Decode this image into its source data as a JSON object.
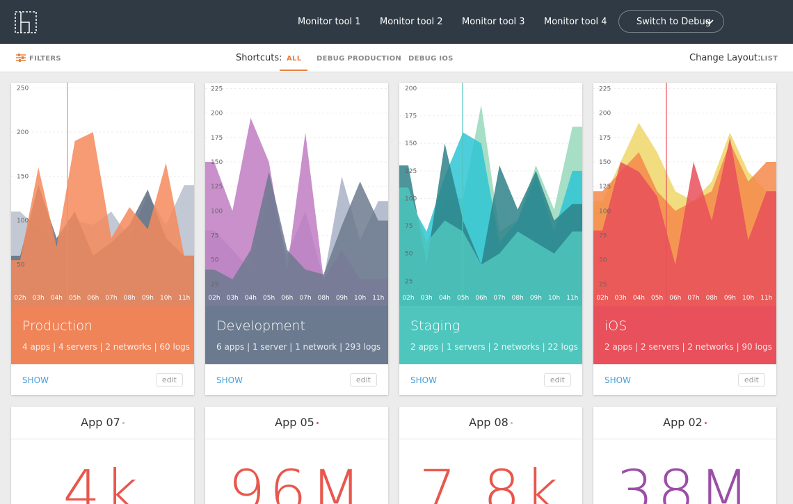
{
  "nav": {
    "items": [
      "Monitor tool 1",
      "Monitor tool 2",
      "Monitor tool 3",
      "Monitor tool 4"
    ],
    "button": "Switch to Debug"
  },
  "toolbar": {
    "filters": "FILTERS",
    "shortcuts_label": "Shortcuts:",
    "shortcuts": [
      "ALL",
      "DEBUG PRODUCTION",
      "DEBUG IOS"
    ],
    "layout_label": "Change Layout:",
    "layout": "LIST"
  },
  "cards": [
    {
      "title": "Production",
      "stats": "4 apps | 4 servers | 2 networks | 60 logs",
      "action": "SHOW",
      "edit": "edit",
      "color": "#ef8459",
      "chart": {
        "type": "area",
        "categories": [
          "02h",
          "03h",
          "04h",
          "05h",
          "06h",
          "07h",
          "08h",
          "09h",
          "10h",
          "11h"
        ],
        "ylim": [
          0,
          256
        ],
        "yticks": [
          50,
          100,
          150,
          200,
          250
        ],
        "series": [
          {
            "color": "#b7c0cc",
            "values": [
              110,
              90,
              75,
              100,
              95,
              110,
              80,
              130,
              95,
              140
            ]
          },
          {
            "color": "#5f6f80",
            "values": [
              60,
              140,
              80,
              110,
              60,
              75,
              95,
              135,
              80,
              60
            ]
          },
          {
            "color": "#f58a5c",
            "values": [
              55,
              160,
              70,
              190,
              200,
              80,
              115,
              90,
              165,
              60
            ]
          }
        ]
      }
    },
    {
      "title": "Development",
      "stats": "6 apps | 1 server | 1 network | 293 logs",
      "action": "SHOW",
      "edit": "edit",
      "color": "#6b7a8f",
      "chart": {
        "type": "area",
        "categories": [
          "02h",
          "03h",
          "04h",
          "05h",
          "06h",
          "07h",
          "08h",
          "09h",
          "10h",
          "11h"
        ],
        "ylim": [
          0,
          231
        ],
        "yticks": [
          25,
          50,
          75,
          100,
          125,
          150,
          175,
          200,
          225
        ],
        "series": [
          {
            "color": "#a9b2c7",
            "values": [
              80,
              60,
              40,
              120,
              55,
              100,
              30,
              135,
              70,
              110
            ]
          },
          {
            "color": "#c07cc3",
            "values": [
              150,
              100,
              195,
              150,
              40,
              180,
              30,
              60,
              30,
              30
            ]
          },
          {
            "color": "#6d7a8e",
            "values": [
              40,
              30,
              60,
              140,
              60,
              40,
              35,
              85,
              130,
              90
            ]
          }
        ]
      }
    },
    {
      "title": "Staging",
      "stats": "2 apps | 1 servers | 2 networks | 22 logs",
      "action": "SHOW",
      "edit": "edit",
      "color": "#4fc6bd",
      "chart": {
        "type": "area",
        "categories": [
          "02h",
          "03h",
          "04h",
          "05h",
          "06h",
          "07h",
          "08h",
          "09h",
          "10h",
          "11h"
        ],
        "ylim": [
          0,
          205
        ],
        "yticks": [
          25,
          50,
          75,
          100,
          125,
          150,
          175,
          200
        ],
        "series": [
          {
            "color": "#97d9bb",
            "values": [
              100,
              60,
              100,
              100,
              185,
              70,
              80,
              130,
              90,
              165
            ]
          },
          {
            "color": "#2fc6d4",
            "values": [
              100,
              70,
              120,
              160,
              150,
              60,
              80,
              120,
              70,
              125
            ]
          },
          {
            "color": "#2e8388",
            "values": [
              130,
              40,
              150,
              80,
              40,
              130,
              90,
              125,
              80,
              95
            ]
          },
          {
            "color": "#4fc6bd",
            "values": [
              110,
              60,
              80,
              70,
              40,
              50,
              70,
              60,
              50,
              70
            ]
          }
        ]
      }
    },
    {
      "title": "iOS",
      "stats": "2 apps | 2 servers | 2 networks | 90 logs",
      "action": "SHOW",
      "edit": "edit",
      "color": "#e8505b",
      "chart": {
        "type": "area",
        "categories": [
          "02h",
          "03h",
          "04h",
          "05h",
          "06h",
          "07h",
          "08h",
          "09h",
          "10h",
          "11h"
        ],
        "ylim": [
          0,
          231
        ],
        "yticks": [
          25,
          50,
          75,
          100,
          125,
          150,
          175,
          200,
          225
        ],
        "series": [
          {
            "color": "#eed66a",
            "values": [
              110,
              150,
              190,
              160,
              120,
              110,
              130,
              180,
              140,
              120
            ]
          },
          {
            "color": "#f58a4a",
            "values": [
              120,
              140,
              160,
              120,
              100,
              110,
              120,
              170,
              130,
              150
            ]
          },
          {
            "color": "#e8505b",
            "values": [
              80,
              150,
              140,
              115,
              45,
              150,
              90,
              175,
              70,
              120
            ]
          }
        ]
      }
    }
  ],
  "apps": [
    {
      "name": "App 07",
      "value": "4k",
      "color": "#e8574d"
    },
    {
      "name": "App 05",
      "value": "96M",
      "color": "#e8574d"
    },
    {
      "name": "App 08",
      "value": "7.8k",
      "color": "#e8574d"
    },
    {
      "name": "App 02",
      "value": "38M",
      "color": "#9b4ea6"
    }
  ]
}
